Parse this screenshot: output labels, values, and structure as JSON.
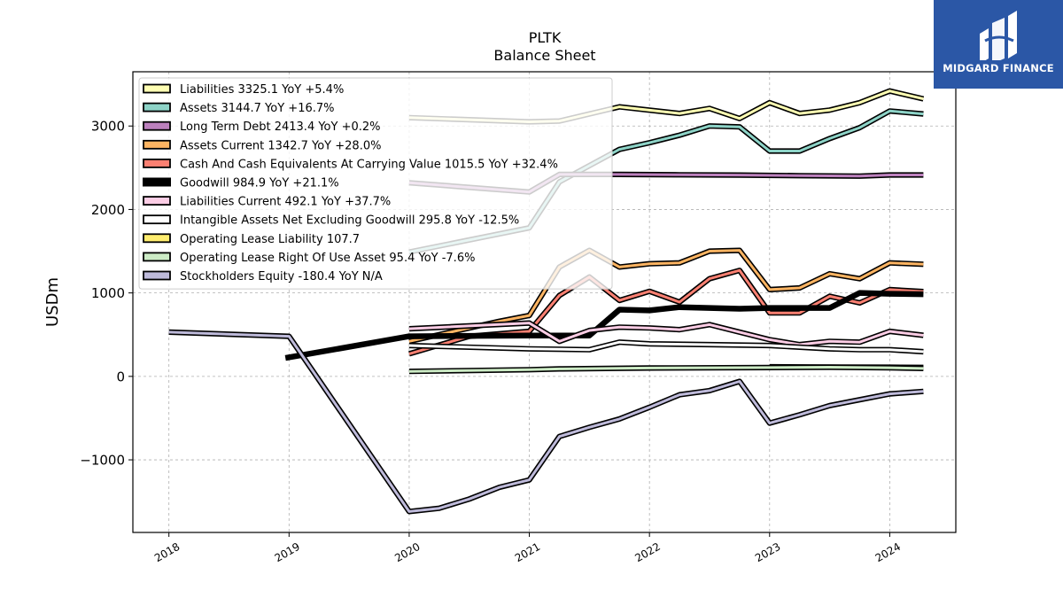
{
  "title": "PLTK",
  "subtitle": "Balance  Sheet",
  "brand": {
    "name": "MIDGARD FINANCE",
    "bg": "#2b57a6"
  },
  "chart_data": {
    "type": "line",
    "ylabel": "USDm",
    "xlabel": "",
    "xlim": [
      2017.7,
      2024.55
    ],
    "ylim": [
      -1870,
      3650
    ],
    "xticks": [
      2018,
      2019,
      2020,
      2021,
      2022,
      2023,
      2024
    ],
    "yticks": [
      -1000,
      0,
      1000,
      2000,
      3000
    ],
    "ytick_labels": [
      "−1000",
      "0",
      "1000",
      "2000",
      "3000"
    ],
    "grid": true,
    "legend_position": "top-left",
    "series": [
      {
        "name": "Liabilities",
        "legend": "Liabilities  3325.1 YoY +5.4%",
        "color": "#ffffb3",
        "width": 3,
        "x": [
          2020,
          2021,
          2021.25,
          2021.75,
          2022.25,
          2022.5,
          2022.75,
          2023,
          2023.25,
          2023.5,
          2023.75,
          2024,
          2024.28
        ],
        "y": [
          3100,
          3050,
          3060,
          3230,
          3150,
          3210,
          3090,
          3280,
          3150,
          3190,
          3280,
          3420,
          3325
        ]
      },
      {
        "name": "Assets",
        "legend": "Assets  3144.7 YoY +16.7%",
        "color": "#8dd3c7",
        "width": 3,
        "x": [
          2020,
          2021,
          2021.25,
          2021.75,
          2022,
          2022.25,
          2022.5,
          2022.75,
          2023,
          2023.25,
          2023.5,
          2023.75,
          2024,
          2024.28
        ],
        "y": [
          1490,
          1780,
          2330,
          2720,
          2800,
          2890,
          3000,
          2990,
          2700,
          2700,
          2850,
          2980,
          3180,
          3145
        ]
      },
      {
        "name": "Long Term Debt",
        "legend": "Long Term Debt  2413.4 YoY +0.2%",
        "color": "#bc80bd",
        "width": 3,
        "x": [
          2020,
          2021,
          2021.25,
          2021.75,
          2022.25,
          2022.75,
          2023.25,
          2023.75,
          2024,
          2024.28
        ],
        "y": [
          2320,
          2210,
          2420,
          2420,
          2415,
          2412,
          2405,
          2400,
          2413,
          2413
        ]
      },
      {
        "name": "Assets Current",
        "legend": "Assets Current  1342.7 YoY +28.0%",
        "color": "#fdb462",
        "width": 3,
        "x": [
          2020,
          2020.75,
          2021,
          2021.25,
          2021.5,
          2021.75,
          2022,
          2022.25,
          2022.5,
          2022.75,
          2023,
          2023.25,
          2023.5,
          2023.75,
          2024,
          2024.28
        ],
        "y": [
          420,
          660,
          730,
          1310,
          1510,
          1310,
          1350,
          1360,
          1500,
          1510,
          1040,
          1060,
          1230,
          1170,
          1360,
          1343
        ]
      },
      {
        "name": "Cash And Cash Equivalents At Carrying Value",
        "legend": "Cash And Cash Equivalents At Carrying Value  1015.5 YoY +32.4%",
        "color": "#fb8072",
        "width": 3,
        "x": [
          2020,
          2020.5,
          2021,
          2021.25,
          2021.5,
          2021.75,
          2022,
          2022.25,
          2022.5,
          2022.75,
          2023,
          2023.25,
          2023.5,
          2023.75,
          2024,
          2024.28
        ],
        "y": [
          270,
          480,
          540,
          970,
          1190,
          910,
          1020,
          890,
          1170,
          1270,
          760,
          760,
          960,
          880,
          1040,
          1016
        ]
      },
      {
        "name": "Goodwill",
        "legend": "Goodwill  984.9 YoY +21.1%",
        "color": "#000000",
        "width": 6.5,
        "x": [
          2018.97,
          2020,
          2021,
          2021.5,
          2021.75,
          2022,
          2022.25,
          2022.5,
          2022.75,
          2023,
          2023.25,
          2023.5,
          2023.75,
          2024,
          2024.28
        ],
        "y": [
          220,
          480,
          490,
          490,
          800,
          790,
          830,
          820,
          810,
          820,
          820,
          820,
          1000,
          990,
          985
        ]
      },
      {
        "name": "Liabilities Current",
        "legend": "Liabilities Current  492.1 YoY +37.7%",
        "color": "#fccde5",
        "width": 3,
        "x": [
          2020,
          2021,
          2021.25,
          2021.5,
          2021.75,
          2022,
          2022.25,
          2022.5,
          2022.75,
          2023,
          2023.25,
          2023.5,
          2023.75,
          2024,
          2024.28
        ],
        "y": [
          570,
          640,
          420,
          550,
          590,
          580,
          560,
          620,
          530,
          440,
          380,
          420,
          410,
          540,
          492
        ]
      },
      {
        "name": "Intangible Assets Net Excluding Goodwill",
        "legend": "Intangible Assets Net Excluding Goodwill  295.8 YoY -12.5%",
        "color": "#ffffff",
        "width": 3,
        "x": [
          2020,
          2021,
          2021.5,
          2021.75,
          2022,
          2022.5,
          2023,
          2023.5,
          2023.75,
          2024,
          2024.28
        ],
        "y": [
          370,
          330,
          320,
          410,
          390,
          380,
          370,
          330,
          320,
          320,
          296
        ]
      },
      {
        "name": "Operating Lease Liability",
        "legend": "Operating Lease Liability  107.7",
        "color": "#ffed6f",
        "width": 3,
        "x": [
          2023,
          2023.5,
          2024,
          2024.28
        ],
        "y": [
          115,
          112,
          110,
          108
        ]
      },
      {
        "name": "Operating Lease Right Of Use Asset",
        "legend": "Operating Lease Right Of Use Asset  95.4 YoY -7.6%",
        "color": "#ccebc5",
        "width": 3,
        "x": [
          2020,
          2021,
          2021.25,
          2022,
          2023,
          2023.5,
          2024,
          2024.28
        ],
        "y": [
          60,
          80,
          90,
          100,
          105,
          110,
          103,
          95
        ]
      },
      {
        "name": "Stockholders Equity",
        "legend": "Stockholders Equity  -180.4 YoY N/A",
        "color": "#bebada",
        "width": 3,
        "x": [
          2018,
          2019,
          2020,
          2020.25,
          2020.5,
          2020.75,
          2021,
          2021.25,
          2021.5,
          2021.75,
          2022,
          2022.25,
          2022.5,
          2022.75,
          2023,
          2023.25,
          2023.5,
          2023.75,
          2024,
          2024.28
        ],
        "y": [
          530,
          480,
          -1620,
          -1580,
          -1470,
          -1330,
          -1240,
          -720,
          -610,
          -510,
          -370,
          -220,
          -170,
          -60,
          -560,
          -460,
          -350,
          -280,
          -210,
          -180
        ]
      }
    ]
  }
}
